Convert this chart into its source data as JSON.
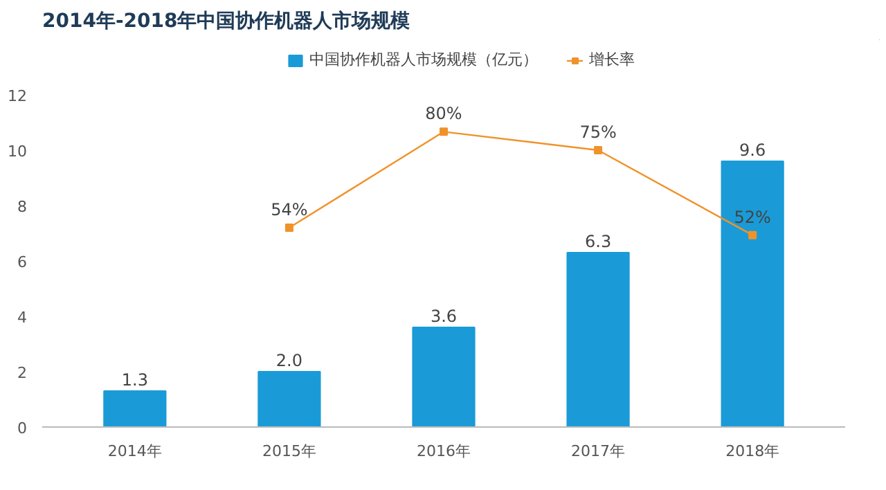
{
  "chart_data": {
    "type": "bar",
    "title": "2014年-2018年中国协作机器人市场规模",
    "categories": [
      "2014年",
      "2015年",
      "2016年",
      "2017年",
      "2018年"
    ],
    "series": [
      {
        "name": "中国协作机器人市场规模（亿元）",
        "color": "#1a9bd7",
        "values": [
          1.3,
          2.0,
          3.6,
          6.3,
          9.6
        ],
        "value_labels": [
          "1.3",
          "2.0",
          "3.6",
          "6.3",
          "9.6"
        ]
      },
      {
        "name": "增长率",
        "type": "line",
        "axis": "y2",
        "color": "#f0922a",
        "marker": "square",
        "values": [
          null,
          54,
          80,
          75,
          52
        ],
        "value_labels": [
          null,
          "54%",
          "80%",
          "75%",
          "52%"
        ]
      }
    ],
    "ylim": [
      0,
      12
    ],
    "yticks": [
      0,
      2,
      4,
      6,
      8,
      10,
      12
    ],
    "grid": false,
    "legend": "top"
  }
}
